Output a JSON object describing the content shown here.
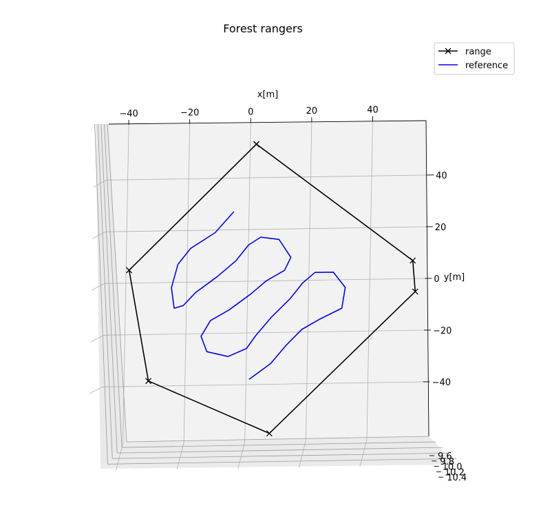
{
  "chart_data": {
    "type": "line",
    "title": "Forest rangers",
    "xlabel": "x[m]",
    "ylabel": "y[m]",
    "zlabel": "",
    "xticks": [
      -40,
      -20,
      0,
      20,
      40
    ],
    "yticks": [
      40,
      20,
      0,
      -20,
      -40
    ],
    "zticks": [
      "9.6",
      "9.8",
      "10.0",
      "10.2",
      "10.4"
    ],
    "grid": true,
    "legend_position": "top-right",
    "series": [
      {
        "name": "range",
        "color": "#000000",
        "marker": "x",
        "points": [
          {
            "x": 2,
            "y": 53
          },
          {
            "x": 54,
            "y": 7
          },
          {
            "x": 55,
            "y": -5
          },
          {
            "x": 8,
            "y": -59
          },
          {
            "x": -32,
            "y": -38
          },
          {
            "x": -39,
            "y": 5
          },
          {
            "x": 2,
            "y": 53
          }
        ]
      },
      {
        "name": "reference",
        "color": "#0000ff",
        "marker": "none",
        "points": [
          {
            "x": -5,
            "y": 27
          },
          {
            "x": -11,
            "y": 19
          },
          {
            "x": -19,
            "y": 13
          },
          {
            "x": -23,
            "y": 7
          },
          {
            "x": -25,
            "y": -2
          },
          {
            "x": -24,
            "y": -10
          },
          {
            "x": -21,
            "y": -9
          },
          {
            "x": -17,
            "y": -4
          },
          {
            "x": -10,
            "y": 2
          },
          {
            "x": -4,
            "y": 8
          },
          {
            "x": 0,
            "y": 14
          },
          {
            "x": 4,
            "y": 17
          },
          {
            "x": 10,
            "y": 16
          },
          {
            "x": 14,
            "y": 9
          },
          {
            "x": 12,
            "y": 4
          },
          {
            "x": 6,
            "y": 0
          },
          {
            "x": 1,
            "y": -5
          },
          {
            "x": -6,
            "y": -11
          },
          {
            "x": -12,
            "y": -15
          },
          {
            "x": -15,
            "y": -21
          },
          {
            "x": -13,
            "y": -27
          },
          {
            "x": -6,
            "y": -29
          },
          {
            "x": 0,
            "y": -26
          },
          {
            "x": 3,
            "y": -21
          },
          {
            "x": 8,
            "y": -14
          },
          {
            "x": 14,
            "y": -7
          },
          {
            "x": 18,
            "y": -1
          },
          {
            "x": 22,
            "y": 3
          },
          {
            "x": 28,
            "y": 3
          },
          {
            "x": 32,
            "y": -3
          },
          {
            "x": 31,
            "y": -11
          },
          {
            "x": 24,
            "y": -15
          },
          {
            "x": 18,
            "y": -19
          },
          {
            "x": 13,
            "y": -25
          },
          {
            "x": 8,
            "y": -32
          },
          {
            "x": 1,
            "y": -38
          }
        ]
      }
    ]
  }
}
